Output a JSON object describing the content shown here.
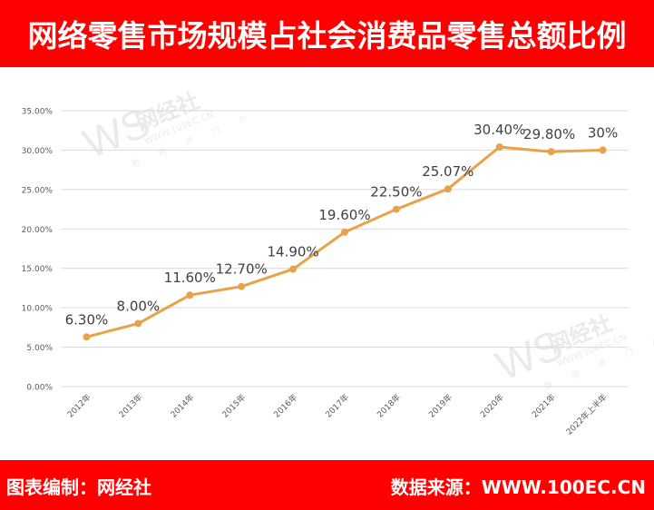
{
  "header": {
    "title": "网络零售市场规模占社会消费品零售总额比例"
  },
  "footer": {
    "left": "图表编制：网经社",
    "right": "数据来源：WWW.100EC.CN"
  },
  "watermark": {
    "logo": "WS",
    "brand": "网经社",
    "url": "WWW.100EC.CN",
    "tagline": "数 经 济 门 户"
  },
  "colors": {
    "band": "#ff0000",
    "line": "#e8a24a",
    "grid": "#d9d9d9",
    "label": "#404040",
    "axis_text": "#595959"
  },
  "chart_data": {
    "type": "line",
    "title": "网络零售市场规模占社会消费品零售总额比例",
    "xlabel": "",
    "ylabel": "",
    "categories": [
      "2012年",
      "2013年",
      "2014年",
      "2015年",
      "2016年",
      "2017年",
      "2018年",
      "2019年",
      "2020年",
      "2021年",
      "2022年上半年"
    ],
    "series": [
      {
        "name": "网络零售市场规模占社会消费品零售总额比例",
        "values": [
          6.3,
          8.0,
          11.6,
          12.7,
          14.9,
          19.6,
          22.5,
          25.07,
          30.4,
          29.8,
          30.0
        ],
        "labels": [
          "6.30%",
          "8.00%",
          "11.60%",
          "12.70%",
          "14.90%",
          "19.60%",
          "22.50%",
          "25.07%",
          "30.40%",
          "29.80%",
          "30%"
        ]
      }
    ],
    "ylim": [
      0,
      35
    ],
    "yticks": [
      "0.00%",
      "5.00%",
      "10.00%",
      "15.00%",
      "20.00%",
      "25.00%",
      "30.00%",
      "35.00%"
    ],
    "grid": true,
    "legend": "none"
  }
}
